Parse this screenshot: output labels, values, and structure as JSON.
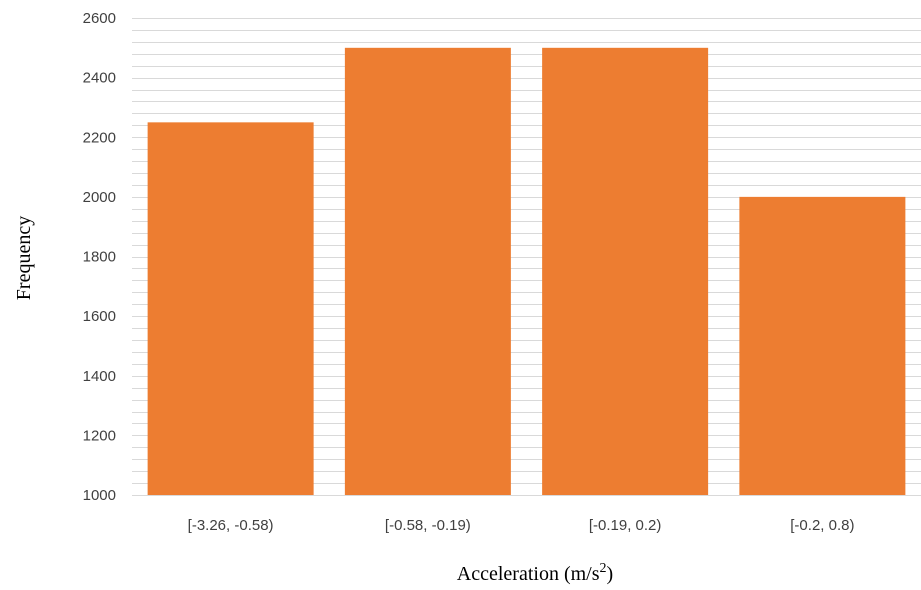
{
  "chart_data": {
    "type": "bar",
    "categories": [
      "[-3.26, -0.58)",
      "[-0.58, -0.19)",
      "[-0.19, 0.2)",
      "[-0.2, 0.8)"
    ],
    "values": [
      2250,
      2500,
      2500,
      2000
    ],
    "title": "",
    "xlabel": "Acceleration (m/s",
    "xlabel_superscript": "2",
    "xlabel_suffix": ")",
    "ylabel": "Frequency",
    "ylim": [
      1000,
      2600
    ],
    "yticks": [
      1000,
      1200,
      1400,
      1600,
      1800,
      2000,
      2200,
      2400,
      2600
    ],
    "minor_grid_step": 40,
    "grid": true,
    "legend": "none",
    "bar_color": "#ED7D31",
    "grid_color": "#D9D9D9"
  }
}
